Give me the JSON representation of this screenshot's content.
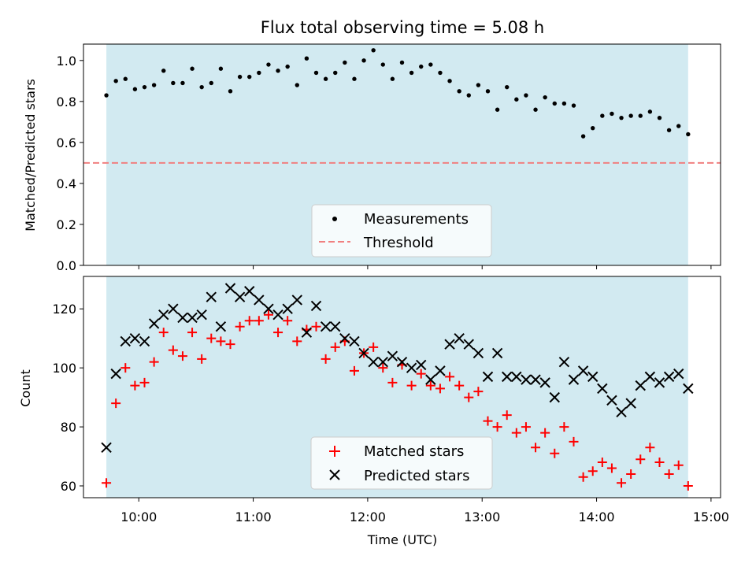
{
  "colors": {
    "observing_span": "#add8e6",
    "measurements": "#000000",
    "threshold": "#f08080",
    "matched": "#ff0000",
    "predicted": "#000000"
  },
  "chart_data": [
    {
      "type": "scatter",
      "title": "Flux total observing time = 5.08 h",
      "xlabel": "",
      "ylabel": "Matched/Predicted stars",
      "xlim": [
        "09:31",
        "15:05"
      ],
      "ylim": [
        0,
        1.08
      ],
      "x_ticks": [
        "10:00",
        "11:00",
        "12:00",
        "13:00",
        "14:00",
        "15:00"
      ],
      "y_ticks": [
        "0.0",
        "0.2",
        "0.4",
        "0.6",
        "0.8",
        "1.0"
      ],
      "observing_span": [
        "09:43",
        "14:48"
      ],
      "threshold": 0.5,
      "legend": [
        "Measurements",
        "Threshold"
      ],
      "legend_location": "bottom-center",
      "series": [
        {
          "name": "Measurements",
          "x": [
            "09:43",
            "09:48",
            "09:53",
            "09:58",
            "10:03",
            "10:08",
            "10:13",
            "10:18",
            "10:23",
            "10:28",
            "10:33",
            "10:38",
            "10:43",
            "10:48",
            "10:53",
            "10:58",
            "11:03",
            "11:08",
            "11:13",
            "11:18",
            "11:23",
            "11:28",
            "11:33",
            "11:38",
            "11:43",
            "11:48",
            "11:53",
            "11:58",
            "12:03",
            "12:08",
            "12:13",
            "12:18",
            "12:23",
            "12:28",
            "12:33",
            "12:38",
            "12:43",
            "12:48",
            "12:53",
            "12:58",
            "13:03",
            "13:08",
            "13:13",
            "13:18",
            "13:23",
            "13:28",
            "13:33",
            "13:38",
            "13:43",
            "13:48",
            "13:53",
            "13:58",
            "14:03",
            "14:08",
            "14:13",
            "14:18",
            "14:23",
            "14:28",
            "14:33",
            "14:38",
            "14:43",
            "14:48"
          ],
          "y": [
            0.83,
            0.9,
            0.91,
            0.86,
            0.87,
            0.88,
            0.95,
            0.89,
            0.89,
            0.96,
            0.87,
            0.89,
            0.96,
            0.85,
            0.92,
            0.92,
            0.94,
            0.98,
            0.95,
            0.97,
            0.88,
            1.01,
            0.94,
            0.91,
            0.94,
            0.99,
            0.91,
            1.0,
            1.05,
            0.98,
            0.91,
            0.99,
            0.94,
            0.97,
            0.98,
            0.94,
            0.9,
            0.85,
            0.83,
            0.88,
            0.85,
            0.76,
            0.87,
            0.81,
            0.83,
            0.76,
            0.82,
            0.79,
            0.79,
            0.78,
            0.63,
            0.67,
            0.73,
            0.74,
            0.72,
            0.73,
            0.73,
            0.75,
            0.72,
            0.66,
            0.68,
            0.64
          ]
        }
      ]
    },
    {
      "type": "scatter",
      "title": "",
      "xlabel": "Time (UTC)",
      "ylabel": "Count",
      "xlim": [
        "09:31",
        "15:05"
      ],
      "ylim": [
        56,
        131
      ],
      "x_ticks": [
        "10:00",
        "11:00",
        "12:00",
        "13:00",
        "14:00",
        "15:00"
      ],
      "y_ticks": [
        "60",
        "80",
        "100",
        "120"
      ],
      "observing_span": [
        "09:43",
        "14:48"
      ],
      "legend": [
        "Matched stars",
        "Predicted stars"
      ],
      "legend_location": "bottom-center",
      "series": [
        {
          "name": "Matched stars",
          "marker": "+",
          "x": [
            "09:43",
            "09:48",
            "09:53",
            "09:58",
            "10:03",
            "10:08",
            "10:13",
            "10:18",
            "10:23",
            "10:28",
            "10:33",
            "10:38",
            "10:43",
            "10:48",
            "10:53",
            "10:58",
            "11:03",
            "11:08",
            "11:13",
            "11:18",
            "11:23",
            "11:28",
            "11:33",
            "11:38",
            "11:43",
            "11:48",
            "11:53",
            "11:58",
            "12:03",
            "12:08",
            "12:13",
            "12:18",
            "12:23",
            "12:28",
            "12:33",
            "12:38",
            "12:43",
            "12:48",
            "12:53",
            "12:58",
            "13:03",
            "13:08",
            "13:13",
            "13:18",
            "13:23",
            "13:28",
            "13:33",
            "13:38",
            "13:43",
            "13:48",
            "13:53",
            "13:58",
            "14:03",
            "14:08",
            "14:13",
            "14:18",
            "14:23",
            "14:28",
            "14:33",
            "14:38",
            "14:43",
            "14:48"
          ],
          "y": [
            61,
            88,
            100,
            94,
            95,
            102,
            112,
            106,
            104,
            112,
            103,
            110,
            109,
            108,
            114,
            116,
            116,
            118,
            112,
            116,
            109,
            113,
            114,
            103,
            107,
            109,
            99,
            105,
            107,
            100,
            95,
            101,
            94,
            98,
            94,
            93,
            97,
            94,
            90,
            92,
            82,
            80,
            84,
            78,
            80,
            73,
            78,
            71,
            80,
            75,
            63,
            65,
            68,
            66,
            61,
            64,
            69,
            73,
            68,
            64,
            67,
            60
          ]
        },
        {
          "name": "Predicted stars",
          "marker": "x",
          "x": [
            "09:43",
            "09:48",
            "09:53",
            "09:58",
            "10:03",
            "10:08",
            "10:13",
            "10:18",
            "10:23",
            "10:28",
            "10:33",
            "10:38",
            "10:43",
            "10:48",
            "10:53",
            "10:58",
            "11:03",
            "11:08",
            "11:13",
            "11:18",
            "11:23",
            "11:28",
            "11:33",
            "11:38",
            "11:43",
            "11:48",
            "11:53",
            "11:58",
            "12:03",
            "12:08",
            "12:13",
            "12:18",
            "12:23",
            "12:28",
            "12:33",
            "12:38",
            "12:43",
            "12:48",
            "12:53",
            "12:58",
            "13:03",
            "13:08",
            "13:13",
            "13:18",
            "13:23",
            "13:28",
            "13:33",
            "13:38",
            "13:43",
            "13:48",
            "13:53",
            "13:58",
            "14:03",
            "14:08",
            "14:13",
            "14:18",
            "14:23",
            "14:28",
            "14:33",
            "14:38",
            "14:43",
            "14:48"
          ],
          "y": [
            73,
            98,
            109,
            110,
            109,
            115,
            118,
            120,
            117,
            117,
            118,
            124,
            114,
            127,
            124,
            126,
            123,
            120,
            118,
            120,
            123,
            112,
            121,
            114,
            114,
            110,
            109,
            105,
            102,
            102,
            104,
            102,
            100,
            101,
            96,
            99,
            108,
            110,
            108,
            105,
            97,
            105,
            97,
            97,
            96,
            96,
            95,
            90,
            102,
            96,
            99,
            97,
            93,
            89,
            85,
            88,
            94,
            97,
            95,
            97,
            98,
            93
          ]
        }
      ]
    }
  ]
}
